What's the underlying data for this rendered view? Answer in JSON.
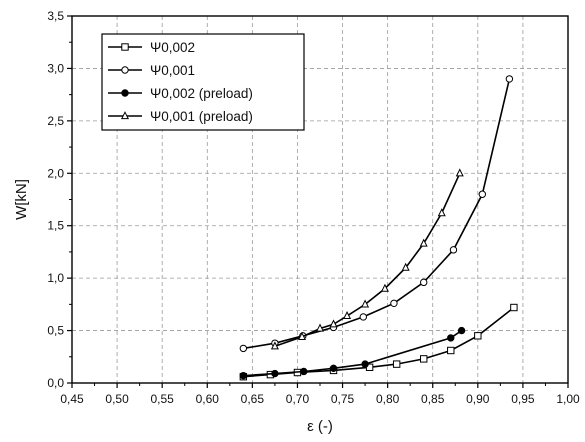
{
  "chart_data": {
    "type": "line",
    "xlabel": "ε (-)",
    "ylabel": "W[kN]",
    "xlim": [
      0.45,
      1.0
    ],
    "ylim": [
      0.0,
      3.5
    ],
    "x_ticks": [
      "0,45",
      "0,50",
      "0,55",
      "0,60",
      "0,65",
      "0,70",
      "0,75",
      "0,80",
      "0,85",
      "0,90",
      "0,95",
      "1,00"
    ],
    "y_ticks": [
      "0,0",
      "0,5",
      "1,0",
      "1,5",
      "2,0",
      "2,5",
      "3,0",
      "3,5"
    ],
    "grid": true,
    "legend_position": "top-left",
    "series": [
      {
        "name": "Ψ0,002",
        "marker": "open-square",
        "x": [
          0.64,
          0.67,
          0.7,
          0.74,
          0.78,
          0.81,
          0.84,
          0.87,
          0.9,
          0.94
        ],
        "y": [
          0.06,
          0.08,
          0.1,
          0.12,
          0.15,
          0.18,
          0.23,
          0.31,
          0.45,
          0.72
        ]
      },
      {
        "name": "Ψ0,001",
        "marker": "open-circle",
        "x": [
          0.64,
          0.675,
          0.706,
          0.74,
          0.773,
          0.807,
          0.84,
          0.873,
          0.905,
          0.935
        ],
        "y": [
          0.33,
          0.38,
          0.45,
          0.53,
          0.63,
          0.76,
          0.96,
          1.27,
          1.8,
          2.9
        ]
      },
      {
        "name": "Ψ0,002 (preload)",
        "marker": "filled-circle",
        "x": [
          0.64,
          0.675,
          0.707,
          0.74,
          0.775,
          0.87,
          0.882
        ],
        "y": [
          0.07,
          0.09,
          0.11,
          0.14,
          0.18,
          0.43,
          0.5
        ]
      },
      {
        "name": "Ψ0,001 (preload)",
        "marker": "open-triangle",
        "x": [
          0.675,
          0.705,
          0.725,
          0.74,
          0.755,
          0.775,
          0.797,
          0.82,
          0.84,
          0.86,
          0.88
        ],
        "y": [
          0.35,
          0.44,
          0.52,
          0.56,
          0.64,
          0.75,
          0.9,
          1.1,
          1.33,
          1.62,
          2.0
        ]
      }
    ]
  }
}
